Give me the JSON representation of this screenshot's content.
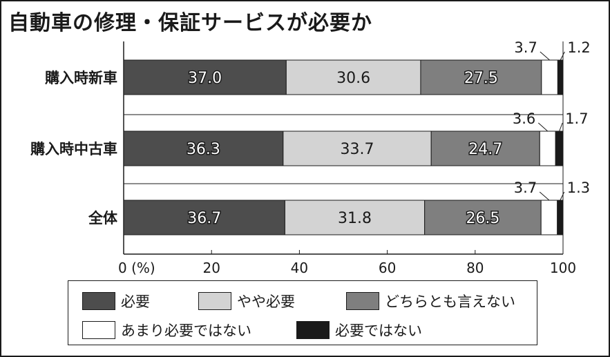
{
  "title": "自動車の修理・保証サービスが必要か",
  "chart_data": {
    "type": "bar",
    "orientation": "horizontal",
    "stacked": true,
    "categories": [
      "購入時新車",
      "購入時中古車",
      "全体"
    ],
    "series": [
      {
        "name": "必要",
        "color": "#4d4d4d",
        "values": [
          37.0,
          36.3,
          36.7
        ]
      },
      {
        "name": "やや必要",
        "color": "#d3d3d3",
        "values": [
          30.6,
          33.7,
          31.8
        ]
      },
      {
        "name": "どちらとも言えない",
        "color": "#7f7f7f",
        "values": [
          27.5,
          24.7,
          26.5
        ]
      },
      {
        "name": "あまり必要ではない",
        "color": "#ffffff",
        "values": [
          3.7,
          3.6,
          3.7
        ]
      },
      {
        "name": "必要ではない",
        "color": "#1a1a1a",
        "values": [
          1.2,
          1.7,
          1.3
        ]
      }
    ],
    "xlim": [
      0,
      100
    ],
    "xticks": [
      "0 (%)",
      "20",
      "40",
      "60",
      "80",
      "100"
    ],
    "xtick_values": [
      0,
      20,
      40,
      60,
      80,
      100
    ],
    "grid": false,
    "legend_position": "bottom"
  }
}
